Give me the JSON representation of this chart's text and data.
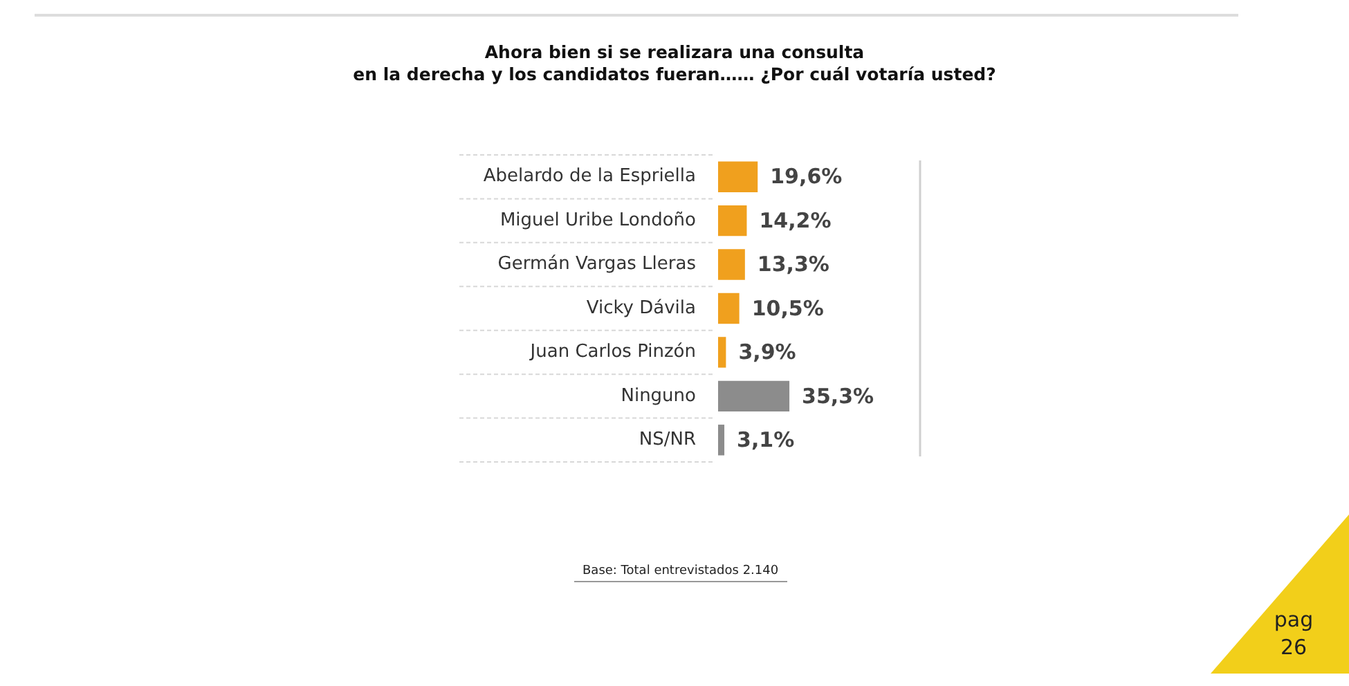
{
  "chart_data": {
    "type": "bar",
    "orientation": "horizontal",
    "title": "Ahora bien si se realizara una consulta\nen la derecha y los candidatos fueran……  ¿Por cuál votaría usted?",
    "categories": [
      "Abelardo de la Espriella",
      "Miguel Uribe Londoño",
      "Germán Vargas Lleras",
      "Vicky Dávila",
      "Juan Carlos Pinzón",
      "Ninguno",
      "NS/NR"
    ],
    "values": [
      19.6,
      14.2,
      13.3,
      10.5,
      3.9,
      35.3,
      3.1
    ],
    "value_labels": [
      "19,6%",
      "14,2%",
      "13,3%",
      "10,5%",
      "3,9%",
      "35,3%",
      "3,1%"
    ],
    "colors": [
      "#f0a01e",
      "#f0a01e",
      "#f0a01e",
      "#f0a01e",
      "#f0a01e",
      "#8c8c8c",
      "#8c8c8c"
    ],
    "xlim": [
      0,
      100
    ],
    "tick_labels": "y",
    "legend": false,
    "annotations": [
      "Base: Total entrevistados 2.140",
      "pag 26"
    ]
  }
}
